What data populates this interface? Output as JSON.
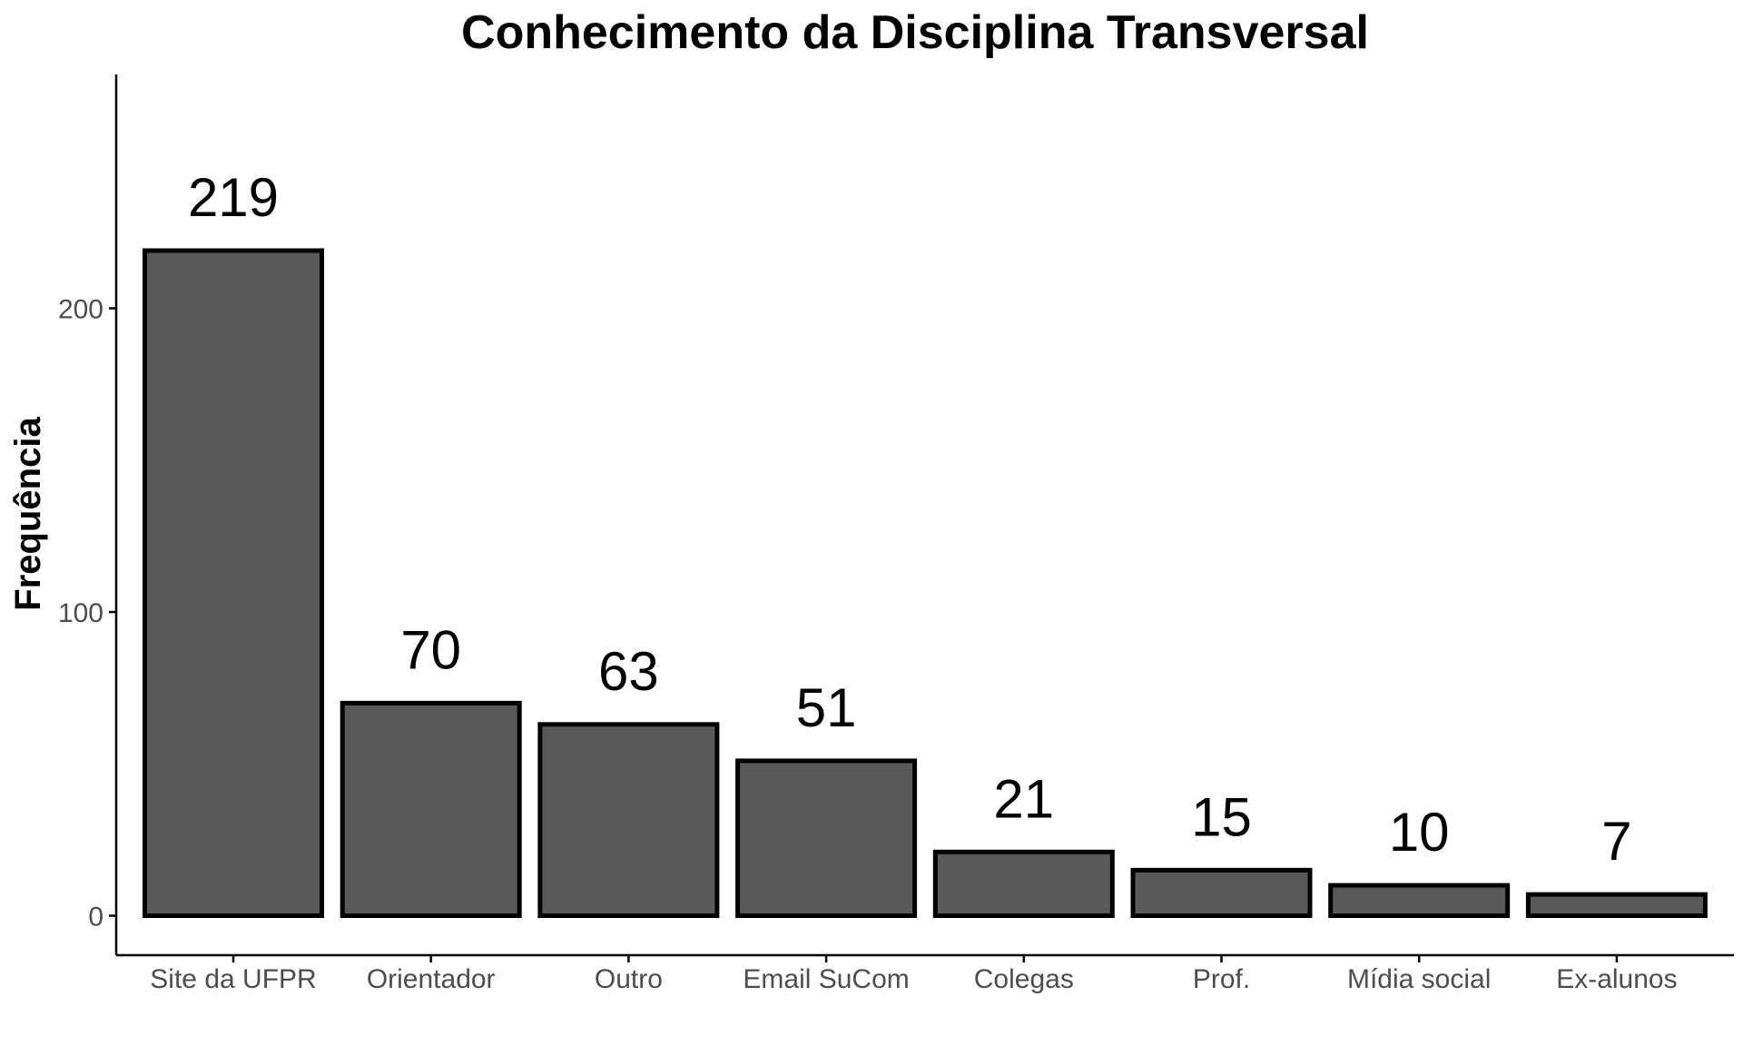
{
  "chart_data": {
    "type": "bar",
    "title": "Conhecimento da Disciplina Transversal",
    "xlabel": "",
    "ylabel": "Frequência",
    "categories": [
      "Site da UFPR",
      "Orientador",
      "Outro",
      "Email SuCom",
      "Colegas",
      "Prof.",
      "Mídia social",
      "Ex-alunos"
    ],
    "values": [
      219,
      70,
      63,
      51,
      21,
      15,
      10,
      7
    ],
    "data_labels": [
      "219",
      "70",
      "63",
      "51",
      "21",
      "15",
      "10",
      "7"
    ],
    "yticks": [
      0,
      100,
      200
    ],
    "ytick_labels": [
      "0",
      "100",
      "200"
    ],
    "ylim": [
      -13,
      277
    ],
    "grid": false,
    "legend": "none",
    "colors": {
      "bar_fill": "#595959",
      "bar_stroke": "#000000",
      "axis": "#000000",
      "tick_text": "#4d4d4d"
    }
  }
}
